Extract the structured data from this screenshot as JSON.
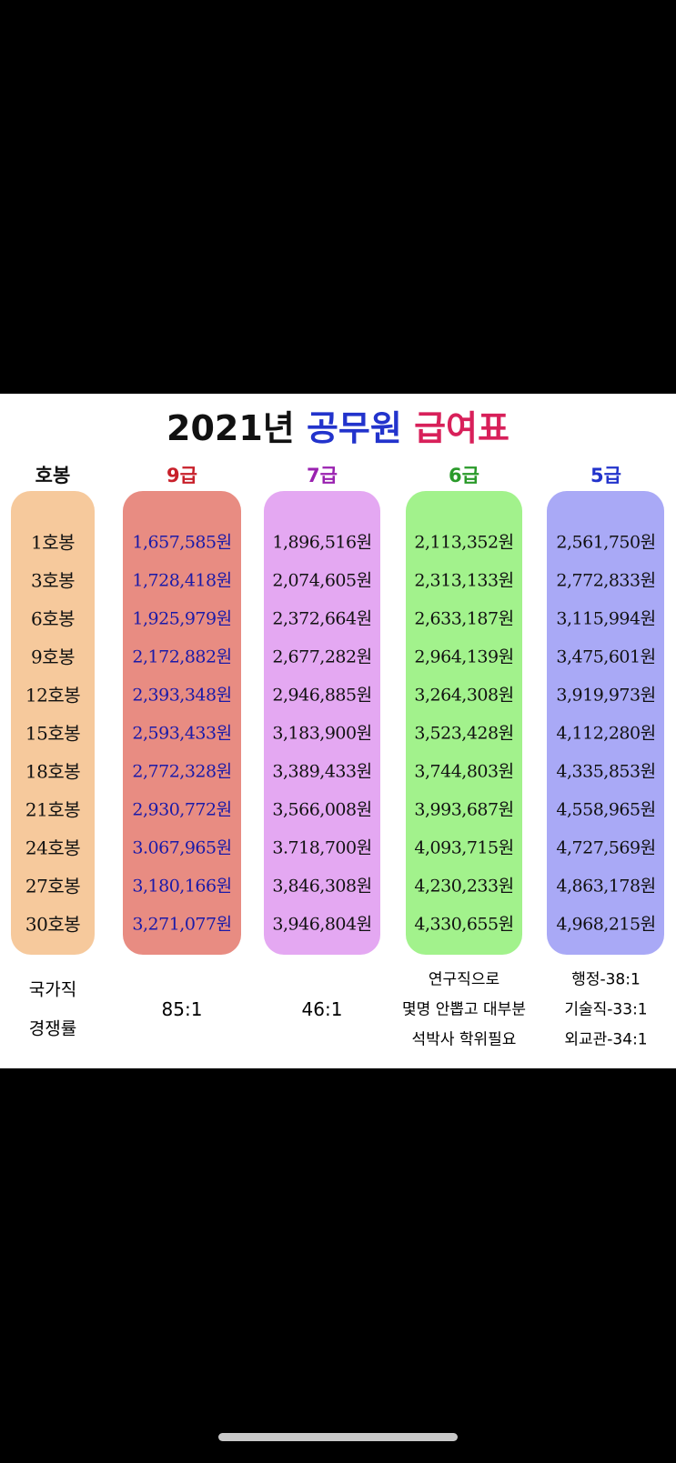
{
  "title": {
    "year": "2021년",
    "subject": "공무원",
    "word": "급여표"
  },
  "table": {
    "headers": [
      "호봉",
      "9급",
      "7급",
      "6급",
      "5급"
    ],
    "rows": [
      [
        "1호봉",
        "1,657,585원",
        "1,896,516원",
        "2,113,352원",
        "2,561,750원"
      ],
      [
        "3호봉",
        "1,728,418원",
        "2,074,605원",
        "2,313,133원",
        "2,772,833원"
      ],
      [
        "6호봉",
        "1,925,979원",
        "2,372,664원",
        "2,633,187원",
        "3,115,994원"
      ],
      [
        "9호봉",
        "2,172,882원",
        "2,677,282원",
        "2,964,139원",
        "3,475,601원"
      ],
      [
        "12호봉",
        "2,393,348원",
        "2,946,885원",
        "3,264,308원",
        "3,919,973원"
      ],
      [
        "15호봉",
        "2,593,433원",
        "3,183,900원",
        "3,523,428원",
        "4,112,280원"
      ],
      [
        "18호봉",
        "2,772,328원",
        "3,389,433원",
        "3,744,803원",
        "4,335,853원"
      ],
      [
        "21호봉",
        "2,930,772원",
        "3,566,008원",
        "3,993,687원",
        "4,558,965원"
      ],
      [
        "24호봉",
        "3.067,965원",
        "3.718,700원",
        "4,093,715원",
        "4,727,569원"
      ],
      [
        "27호봉",
        "3,180,166원",
        "3,846,308원",
        "4,230,233원",
        "4,863,178원"
      ],
      [
        "30호봉",
        "3,271,077원",
        "3,946,804원",
        "4,330,655원",
        "4,968,215원"
      ]
    ]
  },
  "footer": {
    "label": [
      "국가직",
      "경쟁률"
    ],
    "cells": [
      [
        "85:1"
      ],
      [
        "46:1"
      ],
      [
        "연구직으로",
        "몇명 안뽑고 대부분",
        "석박사 학위필요"
      ],
      [
        "행정-38:1",
        "기술직-33:1",
        "외교관-34:1"
      ]
    ]
  }
}
